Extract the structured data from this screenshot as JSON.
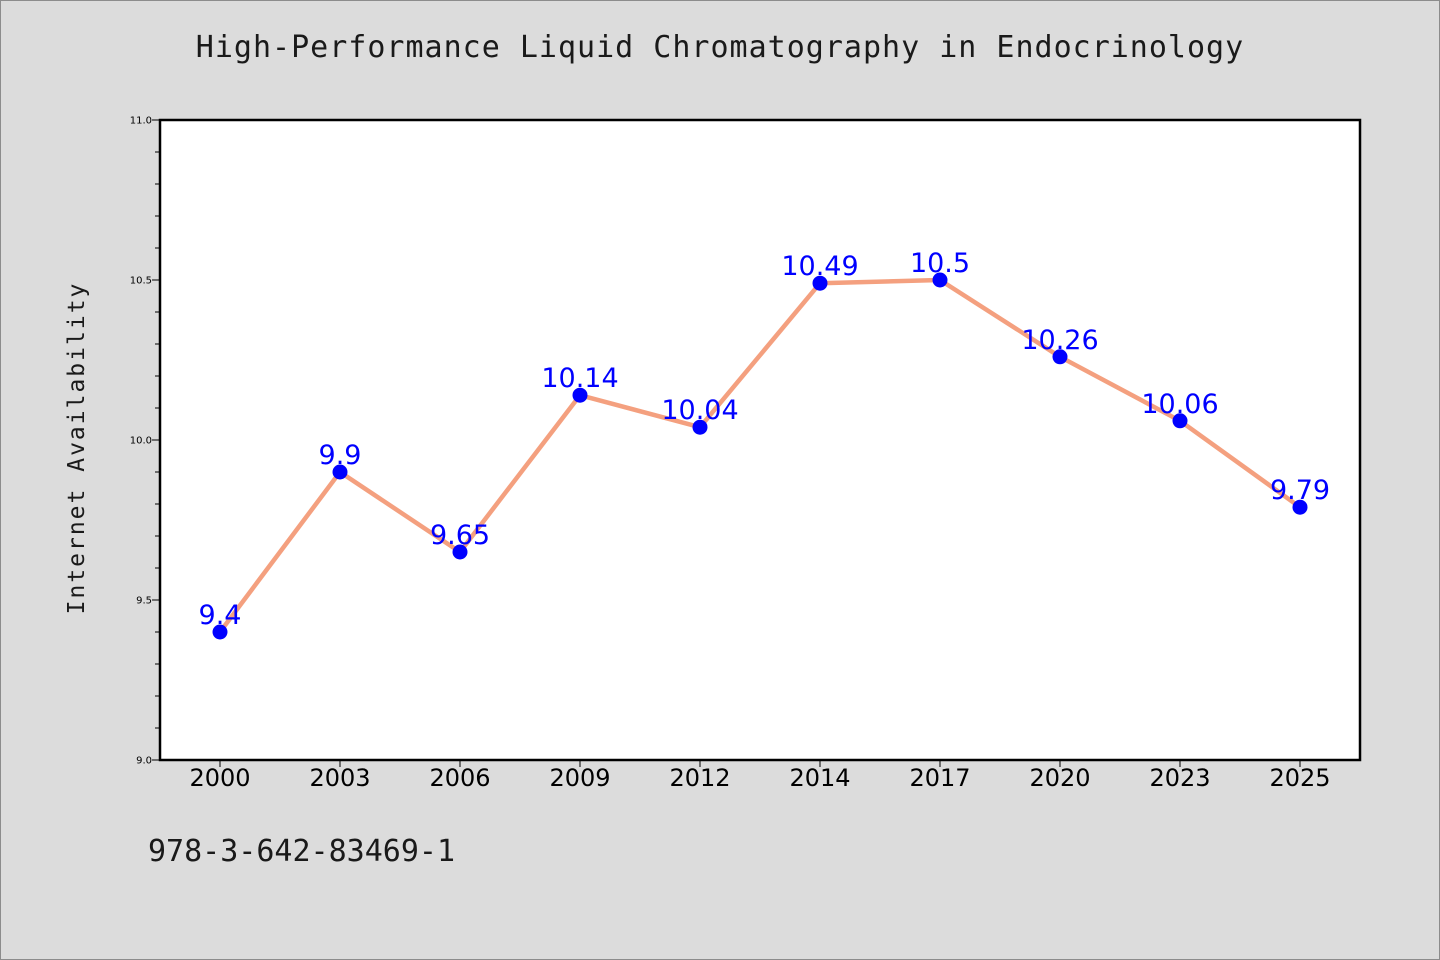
{
  "title": "High-Performance Liquid Chromatography in Endocrinology",
  "ylabel": "Internet Availability",
  "footer_text": "978-3-642-83469-1",
  "colors": {
    "background": "#dcdcdc",
    "plot_area": "#ffffff",
    "line": "#f4a07f",
    "marker": "#0000ff",
    "data_label": "#0000ff"
  },
  "chart_data": {
    "type": "line",
    "title": "High-Performance Liquid Chromatography in Endocrinology",
    "xlabel": "",
    "ylabel": "Internet Availability",
    "categories": [
      "2000",
      "2003",
      "2006",
      "2009",
      "2012",
      "2014",
      "2017",
      "2020",
      "2023",
      "2025"
    ],
    "series": [
      {
        "values": [
          9.4,
          9.9,
          9.65,
          10.14,
          10.04,
          10.49,
          10.5,
          10.26,
          10.06,
          9.79
        ],
        "labels": [
          "9.4",
          "9.9",
          "9.65",
          "10.14",
          "10.04",
          "10.49",
          "10.5",
          "10.26",
          "10.06",
          "9.79"
        ]
      }
    ],
    "ylim": [
      9.0,
      11.0
    ],
    "yticks": [
      "9.0",
      "9.5",
      "10.0",
      "10.5",
      "11.0"
    ],
    "grid": false,
    "legend": "none"
  }
}
